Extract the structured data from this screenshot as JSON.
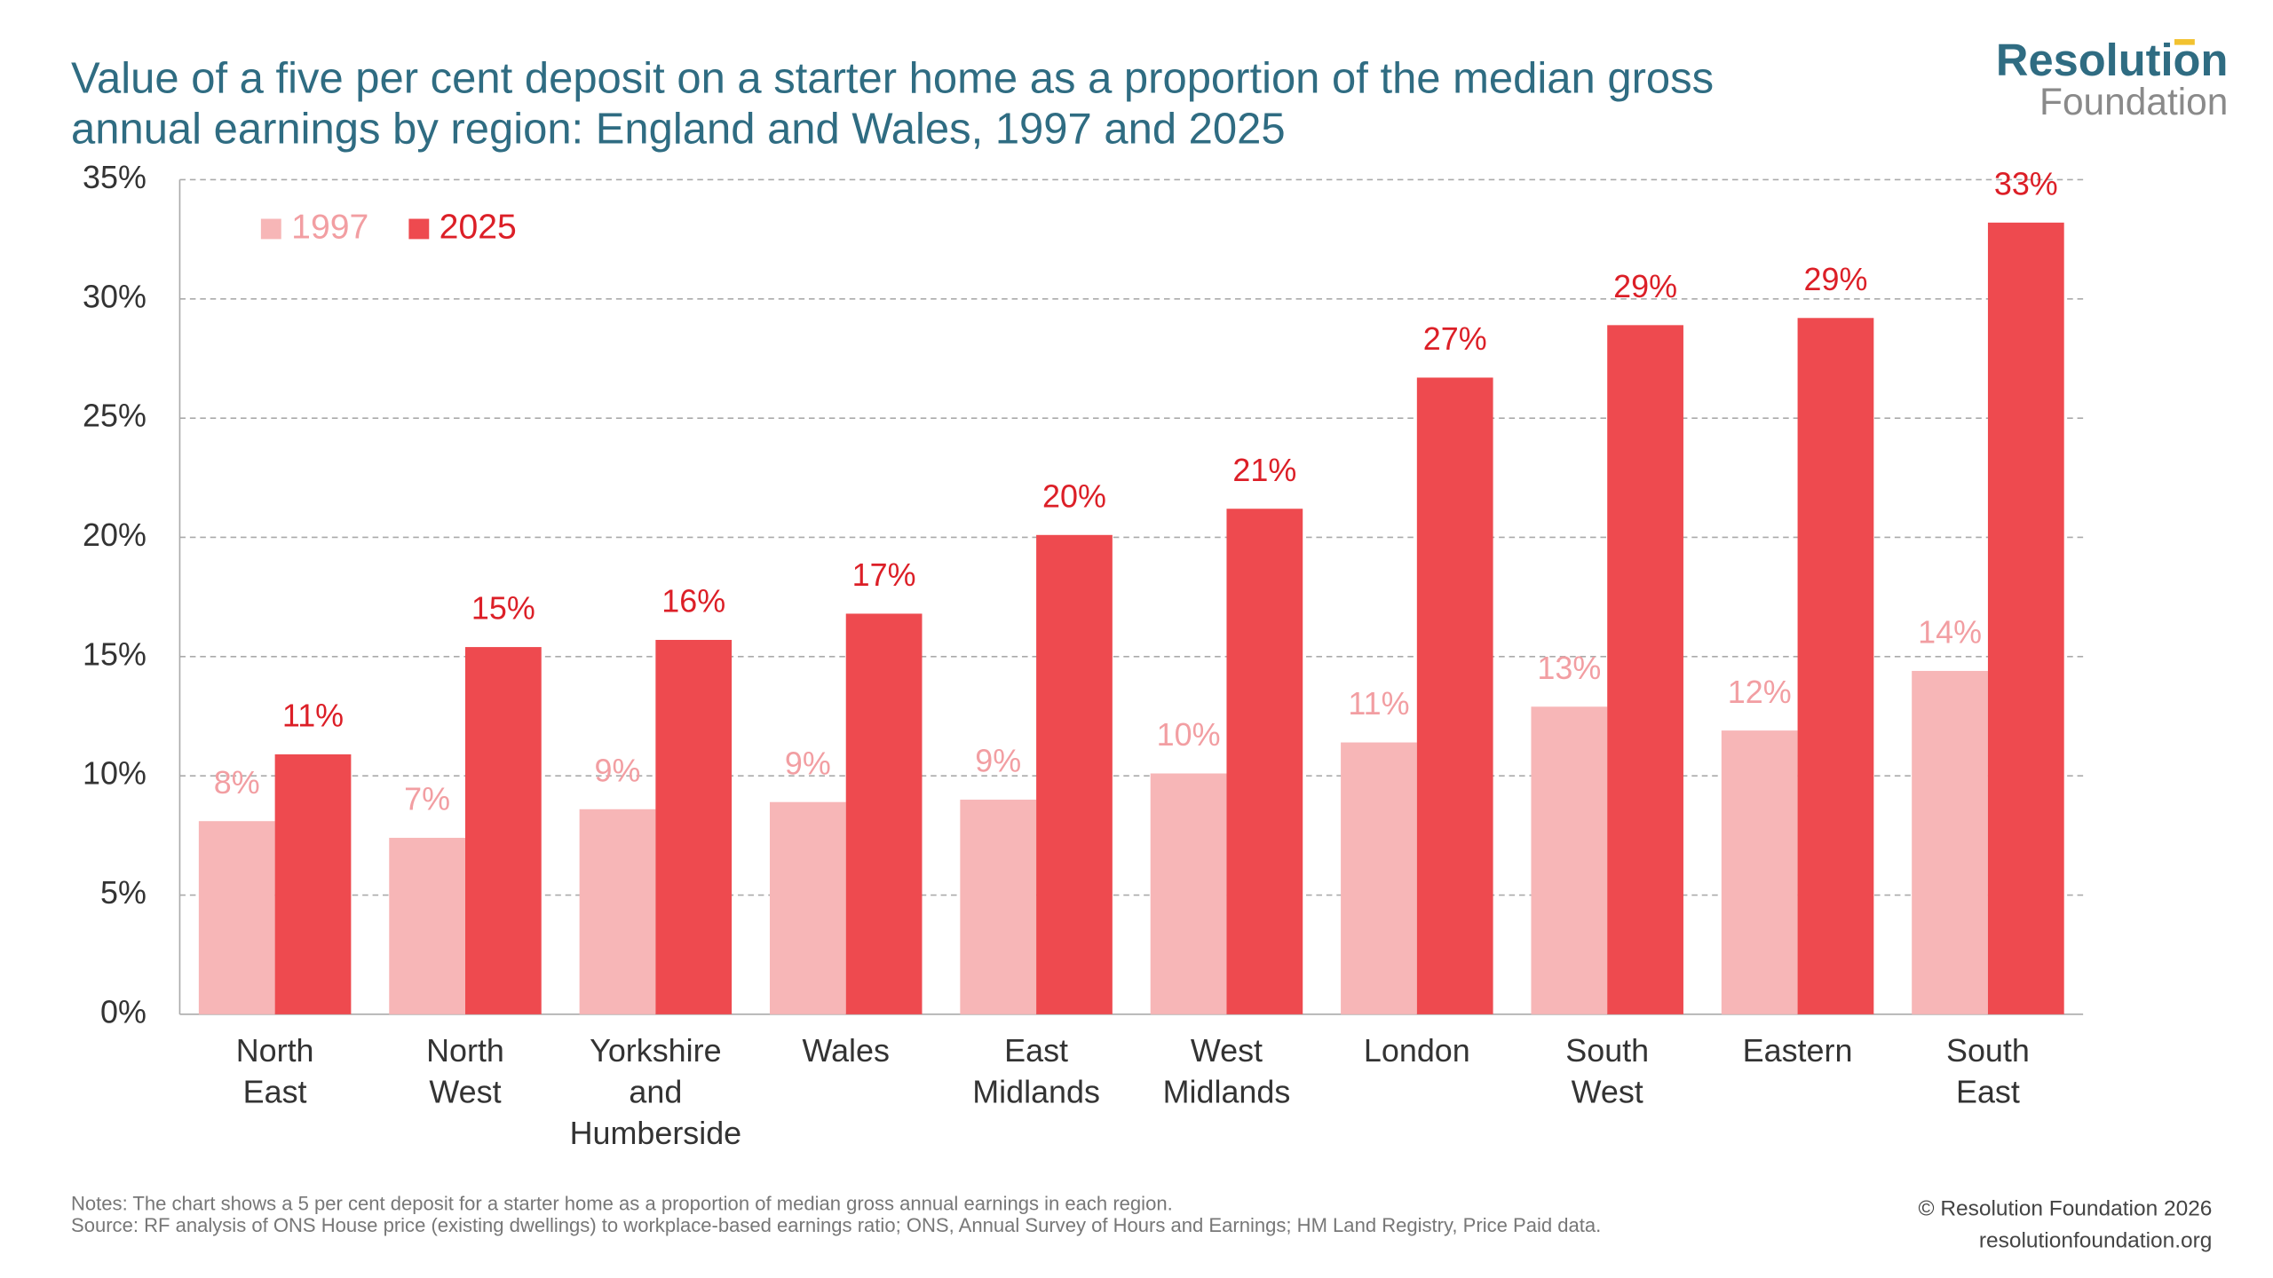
{
  "chart_data": {
    "type": "bar",
    "title": [
      "Value of a five per cent deposit on a starter home as a proportion of the median gross",
      "annual earnings by region: England and Wales, 1997 and 2025"
    ],
    "categories": [
      "North East",
      "North West",
      "Yorkshire and Humberside",
      "Wales",
      "East Midlands",
      "West Midlands",
      "London",
      "South West",
      "Eastern",
      "South East"
    ],
    "series": [
      {
        "name": "1997",
        "color": "#f7b6b7",
        "label_color": "#f29ea2",
        "values": [
          8.1,
          7.4,
          8.6,
          8.9,
          9.0,
          10.1,
          11.4,
          12.9,
          11.9,
          14.4
        ],
        "value_labels": [
          "8%",
          "7%",
          "9%",
          "9%",
          "9%",
          "10%",
          "11%",
          "13%",
          "12%",
          "14%"
        ]
      },
      {
        "name": "2025",
        "color": "#ee4a4f",
        "label_color": "#dc1f27",
        "values": [
          10.9,
          15.4,
          15.7,
          16.8,
          20.1,
          21.2,
          26.7,
          28.9,
          29.2,
          33.2
        ],
        "value_labels": [
          "11%",
          "15%",
          "16%",
          "17%",
          "20%",
          "21%",
          "27%",
          "29%",
          "29%",
          "33%"
        ]
      }
    ],
    "ylim": [
      0,
      35
    ],
    "yticks": [
      {
        "value": 0,
        "label": "0%"
      },
      {
        "value": 5,
        "label": "5%"
      },
      {
        "value": 10,
        "label": "10%"
      },
      {
        "value": 15,
        "label": "15%"
      },
      {
        "value": 20,
        "label": "20%"
      },
      {
        "value": 25,
        "label": "25%"
      },
      {
        "value": 30,
        "label": "30%"
      },
      {
        "value": 35,
        "label": "35%"
      }
    ],
    "grid": true,
    "legend": "top-left",
    "notes": "Notes: The chart shows a 5 per cent deposit for a starter home as a proportion of median gross annual earnings in each region.",
    "source": "Source: RF analysis of ONS House price (existing dwellings) to workplace-based earnings ratio; ONS, Annual Survey of Hours and Earnings; HM Land Registry, Price Paid data.",
    "copyright": "© Resolution Foundation 2026",
    "website": "resolutionfoundation.org",
    "logo": [
      "Resolution",
      "Foundation"
    ]
  }
}
